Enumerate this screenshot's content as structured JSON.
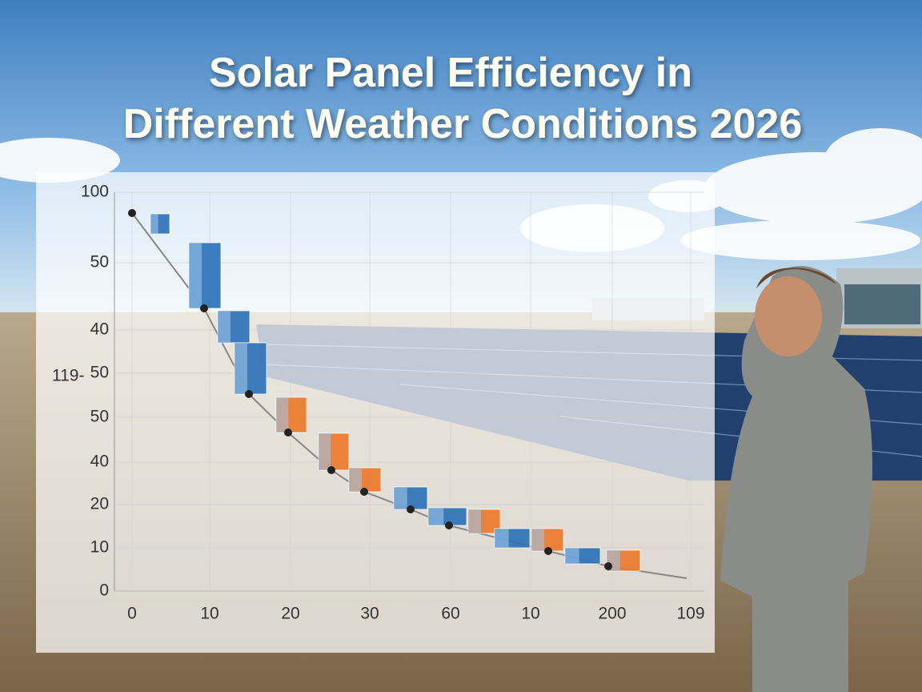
{
  "title": [
    "Solar Panel Efficiency in",
    "Different Weather Conditions 2026"
  ],
  "chart_overlay": {
    "y_axis_title": "119-",
    "y_axis_labels": [
      "100",
      "50",
      "40",
      "50",
      "50",
      "40",
      "20",
      "10",
      "0"
    ],
    "x_axis_labels": [
      "0",
      "10",
      "20",
      "30",
      "60",
      "10",
      "200",
      "109"
    ]
  }
}
